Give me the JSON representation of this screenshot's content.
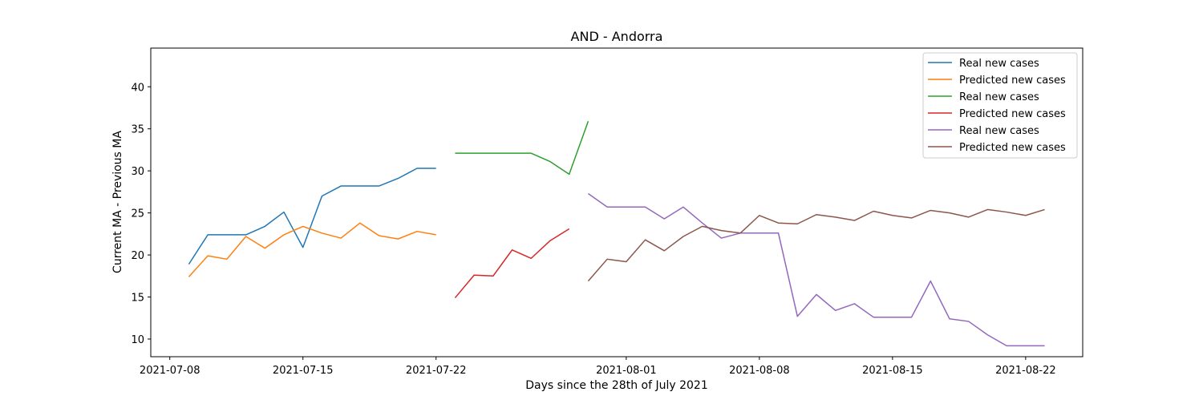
{
  "chart_data": {
    "type": "line",
    "title": "AND - Andorra",
    "xlabel": "Days since the 28th of July 2021",
    "ylabel": "Current MA - Previous MA",
    "xlim": [
      "2021-07-07",
      "2021-08-25"
    ],
    "ylim": [
      7.9,
      44.6
    ],
    "x_ticks": [
      "2021-07-08",
      "2021-07-15",
      "2021-07-22",
      "2021-08-01",
      "2021-08-08",
      "2021-08-15",
      "2021-08-22"
    ],
    "y_ticks": [
      10,
      15,
      20,
      25,
      30,
      35,
      40
    ],
    "grid": false,
    "legend_position": "top-right",
    "series": [
      {
        "name": "Real new cases",
        "color": "#1f77b4",
        "x": [
          "2021-07-09",
          "2021-07-10",
          "2021-07-11",
          "2021-07-12",
          "2021-07-13",
          "2021-07-14",
          "2021-07-15",
          "2021-07-16",
          "2021-07-17",
          "2021-07-18",
          "2021-07-19",
          "2021-07-20",
          "2021-07-21",
          "2021-07-22"
        ],
        "y": [
          18.9,
          22.4,
          22.4,
          22.4,
          23.4,
          25.1,
          20.9,
          27.0,
          28.2,
          28.2,
          28.2,
          29.1,
          30.3,
          30.3
        ]
      },
      {
        "name": "Predicted new cases",
        "color": "#ff7f0e",
        "x": [
          "2021-07-09",
          "2021-07-10",
          "2021-07-11",
          "2021-07-12",
          "2021-07-13",
          "2021-07-14",
          "2021-07-15",
          "2021-07-16",
          "2021-07-17",
          "2021-07-18",
          "2021-07-19",
          "2021-07-20",
          "2021-07-21",
          "2021-07-22"
        ],
        "y": [
          17.4,
          19.9,
          19.5,
          22.2,
          20.8,
          22.4,
          23.4,
          22.6,
          22.0,
          23.8,
          22.3,
          21.9,
          22.8,
          22.4
        ]
      },
      {
        "name": "Real new cases",
        "color": "#2ca02c",
        "x": [
          "2021-07-23",
          "2021-07-24",
          "2021-07-25",
          "2021-07-26",
          "2021-07-27",
          "2021-07-28",
          "2021-07-29",
          "2021-07-30"
        ],
        "y": [
          32.1,
          32.1,
          32.1,
          32.1,
          32.1,
          31.1,
          29.6,
          35.9
        ]
      },
      {
        "name": "Predicted new cases",
        "color": "#d62728",
        "x": [
          "2021-07-23",
          "2021-07-24",
          "2021-07-25",
          "2021-07-26",
          "2021-07-27",
          "2021-07-28",
          "2021-07-29",
          "2021-07-30"
        ],
        "y": [
          14.9,
          17.6,
          17.5,
          20.6,
          19.6,
          21.7,
          23.1,
          null
        ]
      },
      {
        "name": "Real new cases",
        "color": "#9467bd",
        "x": [
          "2021-07-30",
          "2021-07-31",
          "2021-08-01",
          "2021-08-02",
          "2021-08-03",
          "2021-08-04",
          "2021-08-05",
          "2021-08-06",
          "2021-08-07",
          "2021-08-08",
          "2021-08-09",
          "2021-08-10",
          "2021-08-11",
          "2021-08-12",
          "2021-08-13",
          "2021-08-14",
          "2021-08-15",
          "2021-08-16",
          "2021-08-17",
          "2021-08-18",
          "2021-08-19",
          "2021-08-20",
          "2021-08-21",
          "2021-08-22",
          "2021-08-23"
        ],
        "y": [
          27.3,
          25.7,
          25.7,
          25.7,
          24.3,
          25.7,
          23.8,
          22.0,
          22.6,
          22.6,
          22.6,
          12.7,
          15.3,
          13.4,
          14.2,
          12.6,
          12.6,
          12.6,
          16.9,
          12.4,
          12.1,
          10.5,
          9.2,
          9.2,
          9.2
        ]
      },
      {
        "name": "Predicted new cases",
        "color": "#8c564b",
        "x": [
          "2021-07-30",
          "2021-07-31",
          "2021-08-01",
          "2021-08-02",
          "2021-08-03",
          "2021-08-04",
          "2021-08-05",
          "2021-08-06",
          "2021-08-07",
          "2021-08-08",
          "2021-08-09",
          "2021-08-10",
          "2021-08-11",
          "2021-08-12",
          "2021-08-13",
          "2021-08-14",
          "2021-08-15",
          "2021-08-16",
          "2021-08-17",
          "2021-08-18",
          "2021-08-19",
          "2021-08-20",
          "2021-08-21",
          "2021-08-22",
          "2021-08-23"
        ],
        "y": [
          16.9,
          19.5,
          19.2,
          21.8,
          20.5,
          22.2,
          23.4,
          22.9,
          22.6,
          24.7,
          23.8,
          23.7,
          24.8,
          24.5,
          24.1,
          25.2,
          24.7,
          24.4,
          25.3,
          25.0,
          24.5,
          25.4,
          25.1,
          24.7,
          25.4
        ]
      }
    ]
  }
}
